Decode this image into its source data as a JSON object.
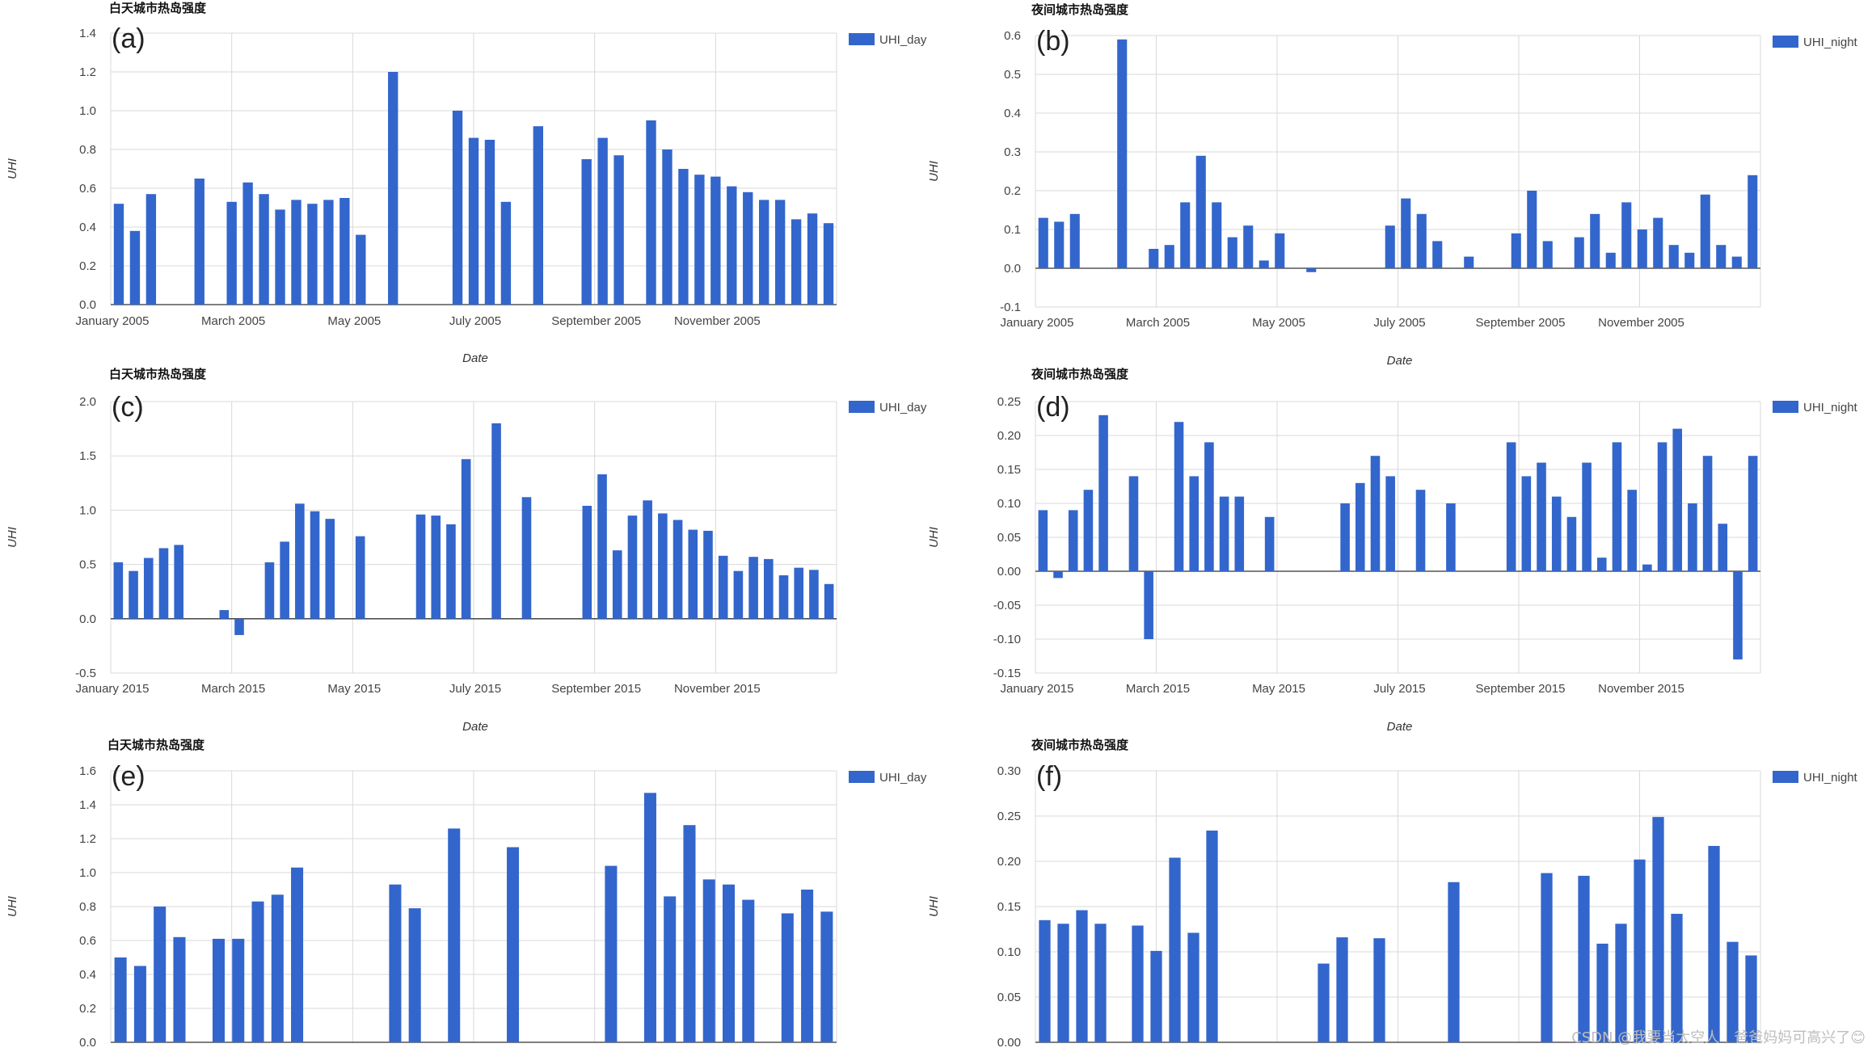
{
  "colors": {
    "bar": "#3366cc",
    "grid": "#d9d9d9",
    "zero_line": "#333333",
    "text": "#444444"
  },
  "watermark": "CSDN @我要当太空人｜爸爸妈妈可高兴了😊",
  "chart_data": [
    {
      "type": "bar",
      "title": "白天城市热岛强度",
      "panel_letter": "(a)",
      "xlabel": "Date",
      "ylabel": "UHI",
      "legend": "UHI_day",
      "ylim": [
        0,
        1.4
      ],
      "yticks": [
        "0.0",
        "0.2",
        "0.4",
        "0.6",
        "0.8",
        "1.0",
        "1.2",
        "1.4"
      ],
      "xticks": [
        "January 2005",
        "March 2005",
        "May 2005",
        "July 2005",
        "September 2005",
        "November 2005"
      ],
      "values": [
        0.52,
        0.38,
        0.57,
        null,
        null,
        0.65,
        null,
        0.53,
        0.63,
        0.57,
        0.49,
        0.54,
        0.52,
        0.54,
        0.55,
        0.36,
        null,
        1.2,
        null,
        null,
        null,
        1.0,
        0.86,
        0.85,
        0.53,
        null,
        0.92,
        null,
        null,
        0.75,
        0.86,
        0.77,
        null,
        0.95,
        0.8,
        0.7,
        0.67,
        0.66,
        0.61,
        0.58,
        0.54,
        0.54,
        0.44,
        0.47,
        0.42
      ]
    },
    {
      "type": "bar",
      "title": "夜间城市热岛强度",
      "panel_letter": "(b)",
      "xlabel": "Date",
      "ylabel": "UHI",
      "legend": "UHI_night",
      "ylim": [
        -0.1,
        0.6
      ],
      "yticks": [
        "-0.1",
        "0.0",
        "0.1",
        "0.2",
        "0.3",
        "0.4",
        "0.5",
        "0.6"
      ],
      "xticks": [
        "January 2005",
        "March 2005",
        "May 2005",
        "July 2005",
        "September 2005",
        "November 2005"
      ],
      "values": [
        0.13,
        0.12,
        0.14,
        null,
        null,
        0.59,
        null,
        0.05,
        0.06,
        0.17,
        0.29,
        0.17,
        0.08,
        0.11,
        0.02,
        0.09,
        null,
        -0.01,
        null,
        null,
        null,
        null,
        0.11,
        0.18,
        0.14,
        0.07,
        null,
        0.03,
        null,
        null,
        0.09,
        0.2,
        0.07,
        null,
        0.08,
        0.14,
        0.04,
        0.17,
        0.1,
        0.13,
        0.06,
        0.04,
        0.19,
        0.06,
        0.03,
        0.24
      ]
    },
    {
      "type": "bar",
      "title": "白天城市热岛强度",
      "panel_letter": "(c)",
      "xlabel": "Date",
      "ylabel": "UHI",
      "legend": "UHI_day",
      "ylim": [
        -0.5,
        2.0
      ],
      "yticks": [
        "-0.5",
        "0.0",
        "0.5",
        "1.0",
        "1.5",
        "2.0"
      ],
      "xticks": [
        "January 2015",
        "March 2015",
        "May 2015",
        "July 2015",
        "September 2015",
        "November 2015"
      ],
      "values": [
        0.52,
        0.44,
        0.56,
        0.65,
        0.68,
        null,
        null,
        0.08,
        -0.15,
        null,
        0.52,
        0.71,
        1.06,
        0.99,
        0.92,
        null,
        0.76,
        null,
        null,
        null,
        0.96,
        0.95,
        0.87,
        1.47,
        null,
        1.8,
        null,
        1.12,
        null,
        null,
        null,
        1.04,
        1.33,
        0.63,
        0.95,
        1.09,
        0.97,
        0.91,
        0.82,
        0.81,
        0.58,
        0.44,
        0.57,
        0.55,
        0.4,
        0.47,
        0.45,
        0.32
      ]
    },
    {
      "type": "bar",
      "title": "夜间城市热岛强度",
      "panel_letter": "(d)",
      "xlabel": "Date",
      "ylabel": "UHI",
      "legend": "UHI_night",
      "ylim": [
        -0.15,
        0.25
      ],
      "yticks": [
        "-0.15",
        "-0.10",
        "-0.05",
        "0.00",
        "0.05",
        "0.10",
        "0.15",
        "0.20",
        "0.25"
      ],
      "xticks": [
        "January 2015",
        "March 2015",
        "May 2015",
        "July 2015",
        "September 2015",
        "November 2015"
      ],
      "values": [
        0.09,
        -0.01,
        0.09,
        0.12,
        0.23,
        null,
        0.14,
        -0.1,
        null,
        0.22,
        0.14,
        0.19,
        0.11,
        0.11,
        null,
        0.08,
        null,
        null,
        null,
        null,
        0.1,
        0.13,
        0.17,
        0.14,
        null,
        0.12,
        null,
        0.1,
        null,
        null,
        null,
        0.19,
        0.14,
        0.16,
        0.11,
        0.08,
        0.16,
        0.02,
        0.19,
        0.12,
        0.01,
        0.19,
        0.21,
        0.1,
        0.17,
        0.07,
        -0.13,
        0.17
      ]
    },
    {
      "type": "bar",
      "title": "白天城市热岛强度",
      "panel_letter": "(e)",
      "xlabel": "",
      "ylabel": "UHI",
      "legend": "UHI_day",
      "ylim": [
        0,
        1.6
      ],
      "yticks": [
        "0.0",
        "0.2",
        "0.4",
        "0.6",
        "0.8",
        "1.0",
        "1.2",
        "1.4",
        "1.6"
      ],
      "xticks": [],
      "values": [
        0.5,
        0.45,
        0.8,
        0.62,
        null,
        0.61,
        0.61,
        0.83,
        0.87,
        1.03,
        null,
        null,
        null,
        null,
        0.93,
        0.79,
        null,
        1.26,
        null,
        null,
        1.15,
        null,
        null,
        null,
        null,
        1.04,
        null,
        1.47,
        0.86,
        1.28,
        0.96,
        0.93,
        0.84,
        null,
        0.76,
        0.9,
        0.77
      ]
    },
    {
      "type": "bar",
      "title": "夜间城市热岛强度",
      "panel_letter": "(f)",
      "xlabel": "",
      "ylabel": "UHI",
      "legend": "UHI_night",
      "ylim": [
        0,
        0.3
      ],
      "yticks": [
        "0.00",
        "0.05",
        "0.10",
        "0.15",
        "0.20",
        "0.25",
        "0.30"
      ],
      "xticks": [],
      "values": [
        0.135,
        0.131,
        0.146,
        0.131,
        null,
        0.129,
        0.101,
        0.204,
        0.121,
        0.234,
        null,
        null,
        null,
        null,
        null,
        0.087,
        0.116,
        null,
        0.115,
        null,
        null,
        null,
        0.177,
        null,
        null,
        null,
        null,
        0.187,
        null,
        0.184,
        0.109,
        0.131,
        0.202,
        0.249,
        0.142,
        null,
        0.217,
        0.111,
        0.096
      ]
    }
  ]
}
